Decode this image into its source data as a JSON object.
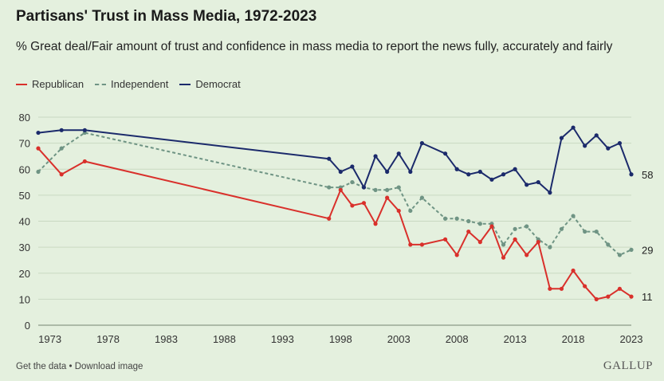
{
  "title": "Partisans' Trust in Mass Media, 1972-2023",
  "subtitle": "% Great deal/Fair amount of trust and confidence in mass media to report the news fully, accurately and fairly",
  "footer": {
    "get_data": "Get the data",
    "separator": " • ",
    "download": "Download image",
    "brand": "GALLUP"
  },
  "colors": {
    "republican": "#d9302b",
    "independent": "#6f9484",
    "democrat": "#1b2a6b",
    "background": "#e4f0de",
    "grid": "#c9d9c2"
  },
  "chart_data": {
    "type": "line",
    "title": "Partisans' Trust in Mass Media, 1972-2023",
    "xlabel": "",
    "ylabel": "",
    "xlim": [
      1972,
      2023
    ],
    "ylim": [
      0,
      80
    ],
    "yticks": [
      0,
      10,
      20,
      30,
      40,
      50,
      60,
      70,
      80
    ],
    "xticks": [
      1973,
      1978,
      1983,
      1988,
      1993,
      1998,
      2003,
      2008,
      2013,
      2018,
      2023
    ],
    "grid": true,
    "legend_position": "top-left",
    "series": [
      {
        "name": "Republican",
        "style": "solid",
        "end_label": "11",
        "x": [
          1972,
          1974,
          1976,
          1997,
          1998,
          1999,
          2000,
          2001,
          2002,
          2003,
          2004,
          2005,
          2007,
          2008,
          2009,
          2010,
          2011,
          2012,
          2013,
          2014,
          2015,
          2016,
          2017,
          2018,
          2019,
          2020,
          2021,
          2022,
          2023
        ],
        "y": [
          68,
          58,
          63,
          41,
          52,
          46,
          47,
          39,
          49,
          44,
          31,
          31,
          33,
          27,
          36,
          32,
          38,
          26,
          33,
          27,
          32,
          14,
          14,
          21,
          15,
          10,
          11,
          14,
          11
        ]
      },
      {
        "name": "Independent",
        "style": "dashed",
        "end_label": "29",
        "x": [
          1972,
          1974,
          1976,
          1997,
          1998,
          1999,
          2000,
          2001,
          2002,
          2003,
          2004,
          2005,
          2007,
          2008,
          2009,
          2010,
          2011,
          2012,
          2013,
          2014,
          2015,
          2016,
          2017,
          2018,
          2019,
          2020,
          2021,
          2022,
          2023
        ],
        "y": [
          59,
          68,
          74,
          53,
          53,
          55,
          53,
          52,
          52,
          53,
          44,
          49,
          41,
          41,
          40,
          39,
          39,
          31,
          37,
          38,
          33,
          30,
          37,
          42,
          36,
          36,
          31,
          27,
          29
        ]
      },
      {
        "name": "Democrat",
        "style": "solid",
        "end_label": "58",
        "x": [
          1972,
          1974,
          1976,
          1997,
          1998,
          1999,
          2000,
          2001,
          2002,
          2003,
          2004,
          2005,
          2007,
          2008,
          2009,
          2010,
          2011,
          2012,
          2013,
          2014,
          2015,
          2016,
          2017,
          2018,
          2019,
          2020,
          2021,
          2022,
          2023
        ],
        "y": [
          74,
          75,
          75,
          64,
          59,
          61,
          53,
          65,
          59,
          66,
          59,
          70,
          66,
          60,
          58,
          59,
          56,
          58,
          60,
          54,
          55,
          51,
          72,
          76,
          69,
          73,
          68,
          70,
          58
        ]
      }
    ]
  }
}
